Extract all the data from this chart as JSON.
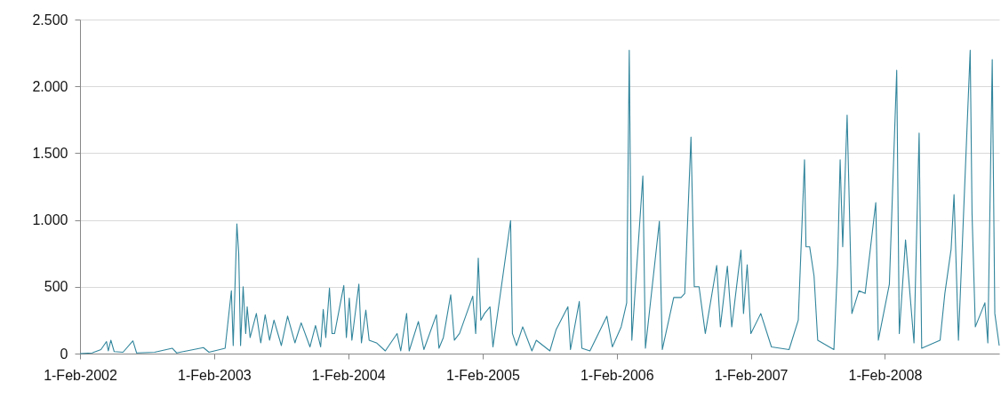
{
  "chart_data": {
    "type": "line",
    "color": "#31859c",
    "x": [
      "2002-02-01",
      "2002-03-06",
      "2002-03-30",
      "2002-04-14",
      "2002-04-19",
      "2002-04-26",
      "2002-05-05",
      "2002-05-29",
      "2002-06-25",
      "2002-07-05",
      "2002-08-23",
      "2002-10-10",
      "2002-10-22",
      "2003-01-03",
      "2003-01-18",
      "2003-03-03",
      "2003-03-20",
      "2003-03-25",
      "2003-04-04",
      "2003-04-09",
      "2003-04-14",
      "2003-04-21",
      "2003-04-28",
      "2003-05-02",
      "2003-05-10",
      "2003-05-27",
      "2003-06-08",
      "2003-06-20",
      "2003-07-02",
      "2003-07-14",
      "2003-08-03",
      "2003-08-20",
      "2003-09-09",
      "2003-09-26",
      "2003-10-20",
      "2003-11-04",
      "2003-11-18",
      "2003-11-25",
      "2003-12-02",
      "2003-12-12",
      "2003-12-19",
      "2003-12-26",
      "2004-01-13",
      "2004-01-20",
      "2004-01-27",
      "2004-02-04",
      "2004-02-11",
      "2004-03-01",
      "2004-03-08",
      "2004-03-20",
      "2004-03-29",
      "2004-04-18",
      "2004-05-12",
      "2004-06-13",
      "2004-06-23",
      "2004-07-09",
      "2004-07-16",
      "2004-08-10",
      "2004-08-25",
      "2004-09-28",
      "2004-10-05",
      "2004-10-17",
      "2004-11-06",
      "2004-11-16",
      "2004-11-30",
      "2005-01-05",
      "2005-01-13",
      "2005-01-20",
      "2005-01-27",
      "2005-02-06",
      "2005-02-21",
      "2005-03-01",
      "2005-04-18",
      "2005-04-23",
      "2005-05-04",
      "2005-05-21",
      "2005-06-15",
      "2005-06-27",
      "2005-08-03",
      "2005-08-20",
      "2005-09-21",
      "2005-09-28",
      "2005-10-22",
      "2005-10-29",
      "2005-11-20",
      "2006-01-05",
      "2006-01-20",
      "2006-02-13",
      "2006-02-28",
      "2006-03-07",
      "2006-03-14",
      "2006-04-13",
      "2006-04-20",
      "2006-05-28",
      "2006-06-05",
      "2006-07-06",
      "2006-07-26",
      "2006-08-05",
      "2006-08-22",
      "2006-08-31",
      "2006-09-13",
      "2006-09-30",
      "2006-10-31",
      "2006-11-10",
      "2006-11-29",
      "2006-12-11",
      "2007-01-05",
      "2007-01-12",
      "2007-01-22",
      "2007-02-01",
      "2007-02-28",
      "2007-03-29",
      "2007-05-16",
      "2007-06-10",
      "2007-06-27",
      "2007-07-01",
      "2007-07-11",
      "2007-07-23",
      "2007-08-02",
      "2007-09-15",
      "2007-09-25",
      "2007-10-02",
      "2007-10-09",
      "2007-10-21",
      "2007-10-26",
      "2007-11-03",
      "2007-11-22",
      "2007-12-09",
      "2008-01-07",
      "2008-01-14",
      "2008-02-13",
      "2008-03-04",
      "2008-03-11",
      "2008-03-28",
      "2008-04-20",
      "2008-05-04",
      "2008-05-11",
      "2008-06-30",
      "2008-07-13",
      "2008-07-30",
      "2008-08-07",
      "2008-08-19",
      "2008-09-20",
      "2008-09-25",
      "2008-10-04",
      "2008-10-30",
      "2008-11-07",
      "2008-11-19",
      "2008-11-26",
      "2008-12-08"
    ],
    "values": [
      0,
      5,
      30,
      90,
      20,
      100,
      15,
      10,
      95,
      5,
      10,
      40,
      5,
      45,
      10,
      40,
      470,
      60,
      970,
      750,
      60,
      500,
      150,
      350,
      120,
      300,
      80,
      290,
      100,
      250,
      60,
      280,
      80,
      230,
      50,
      210,
      50,
      330,
      120,
      490,
      150,
      150,
      410,
      510,
      120,
      415,
      100,
      520,
      80,
      325,
      100,
      80,
      20,
      150,
      20,
      300,
      20,
      240,
      30,
      290,
      40,
      120,
      440,
      100,
      150,
      430,
      150,
      715,
      250,
      300,
      350,
      50,
      995,
      150,
      60,
      200,
      20,
      100,
      20,
      180,
      350,
      30,
      390,
      40,
      20,
      280,
      50,
      200,
      380,
      2270,
      100,
      1330,
      40,
      990,
      30,
      420,
      420,
      450,
      1620,
      500,
      500,
      150,
      660,
      200,
      655,
      200,
      775,
      300,
      665,
      150,
      300,
      50,
      30,
      250,
      1450,
      800,
      800,
      580,
      100,
      30,
      665,
      1450,
      800,
      1785,
      1225,
      300,
      470,
      450,
      1130,
      100,
      520,
      2120,
      150,
      850,
      80,
      1650,
      40,
      100,
      450,
      780,
      1190,
      100,
      2270,
      1050,
      200,
      380,
      80,
      2200,
      300,
      60
    ],
    "xlim": [
      "2002-02-01",
      "2008-12-08"
    ],
    "xticks": [
      {
        "value": "2002-02-01",
        "label": "1-Feb-2002"
      },
      {
        "value": "2003-02-01",
        "label": "1-Feb-2003"
      },
      {
        "value": "2004-02-01",
        "label": "1-Feb-2004"
      },
      {
        "value": "2005-02-01",
        "label": "1-Feb-2005"
      },
      {
        "value": "2006-02-01",
        "label": "1-Feb-2006"
      },
      {
        "value": "2007-02-01",
        "label": "1-Feb-2007"
      },
      {
        "value": "2008-02-01",
        "label": "1-Feb-2008"
      }
    ],
    "ylim": [
      0,
      2500
    ],
    "yticks": [
      0,
      500,
      {
        "value": 1000,
        "label": "1.000"
      },
      {
        "value": 1500,
        "label": "1.500"
      },
      {
        "value": 2000,
        "label": "2.000"
      },
      {
        "value": 2500,
        "label": "2.500"
      }
    ],
    "grid": "y",
    "marker": "none",
    "line_style": "solid"
  }
}
